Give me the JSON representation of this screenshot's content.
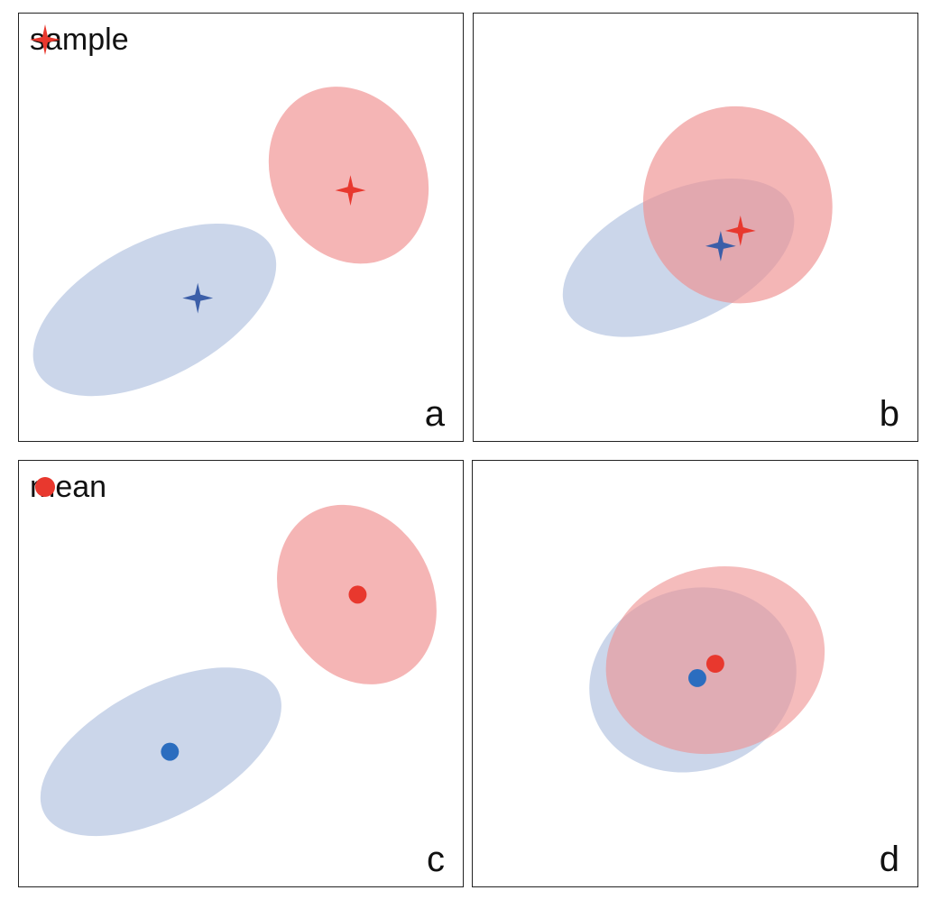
{
  "colors": {
    "red": "#e8382e",
    "blue": "#3b5ea8",
    "blue_dot": "#2b6dbf",
    "red_region": "#f2a3a3",
    "blue_region": "#c5d2e8",
    "frame": "#222222"
  },
  "legend_top": {
    "marker": "red-four-point-star",
    "text": "sample"
  },
  "legend_bottom": {
    "marker": "red-dot",
    "text": "mean"
  },
  "panels": [
    {
      "label": "a",
      "marker": "star"
    },
    {
      "label": "b",
      "marker": "star"
    },
    {
      "label": "c",
      "marker": "dot"
    },
    {
      "label": "d",
      "marker": "dot"
    }
  ]
}
